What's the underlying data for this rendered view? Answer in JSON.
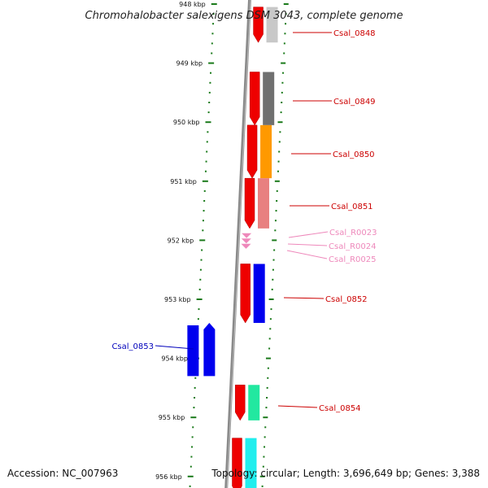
{
  "header": {
    "title": "Chromohalobacter salexigens DSM 3043, complete genome"
  },
  "footer": {
    "accession": "Accession: NC_007963",
    "topology": "Topology: circular; Length: 3,696,649 bp; Genes: 3,388"
  },
  "colors": {
    "backbone": "#8a8a8a",
    "tick": "#1a7a1a",
    "strand_red": "#ee0000",
    "label_red": "#cc0000",
    "label_pink": "#ee88bb",
    "label_blue": "#0000bb"
  },
  "scale": {
    "unit": "kbp",
    "ticks": [
      {
        "kbp": 948,
        "label": "948 kbp"
      },
      {
        "kbp": 949,
        "label": "949 kbp"
      },
      {
        "kbp": 950,
        "label": "950 kbp"
      },
      {
        "kbp": 951,
        "label": "951 kbp"
      },
      {
        "kbp": 952,
        "label": "952 kbp"
      },
      {
        "kbp": 953,
        "label": "953 kbp"
      },
      {
        "kbp": 954,
        "label": "954 kbp"
      },
      {
        "kbp": 955,
        "label": "955 kbp"
      },
      {
        "kbp": 956,
        "label": "956 kbp"
      }
    ]
  },
  "genes": [
    {
      "id": "Csal_0848",
      "label": "Csal_0848",
      "strand": "+",
      "start_kbp": 948.05,
      "end_kbp": 948.65,
      "color": "#c8c8c8",
      "label_color": "#cc0000"
    },
    {
      "id": "Csal_0849",
      "label": "Csal_0849",
      "strand": "+",
      "start_kbp": 949.15,
      "end_kbp": 950.05,
      "color": "#707070",
      "label_color": "#cc0000"
    },
    {
      "id": "Csal_0850",
      "label": "Csal_0850",
      "strand": "+",
      "start_kbp": 950.05,
      "end_kbp": 950.95,
      "color": "#ff9900",
      "label_color": "#cc0000"
    },
    {
      "id": "Csal_0851",
      "label": "Csal_0851",
      "strand": "+",
      "start_kbp": 950.95,
      "end_kbp": 951.8,
      "color": "#e88080",
      "label_color": "#cc0000"
    },
    {
      "id": "Csal_R0023",
      "label": "Csal_R0023",
      "strand": "+",
      "start_kbp": 951.88,
      "end_kbp": 951.95,
      "color": "#ee88bb",
      "label_color": "#ee88bb"
    },
    {
      "id": "Csal_R0024",
      "label": "Csal_R0024",
      "strand": "+",
      "start_kbp": 951.97,
      "end_kbp": 952.04,
      "color": "#ee88bb",
      "label_color": "#ee88bb"
    },
    {
      "id": "Csal_R0025",
      "label": "Csal_R0025",
      "strand": "+",
      "start_kbp": 952.06,
      "end_kbp": 952.13,
      "color": "#ee88bb",
      "label_color": "#ee88bb"
    },
    {
      "id": "Csal_0852",
      "label": "Csal_0852",
      "strand": "+",
      "start_kbp": 952.4,
      "end_kbp": 953.4,
      "color": "#0000ee",
      "label_color": "#cc0000"
    },
    {
      "id": "Csal_0853",
      "label": "Csal_0853",
      "strand": "-",
      "start_kbp": 953.4,
      "end_kbp": 954.3,
      "color": "#0000ee",
      "label_color": "#0000bb"
    },
    {
      "id": "Csal_0854",
      "label": "Csal_0854",
      "strand": "+",
      "start_kbp": 954.45,
      "end_kbp": 955.05,
      "color": "#22e8a0",
      "label_color": "#cc0000"
    },
    {
      "id": "next_gene",
      "label": "",
      "strand": "+",
      "start_kbp": 955.35,
      "end_kbp": 956.3,
      "color": "#22eeee",
      "label_color": "#cc0000"
    }
  ]
}
